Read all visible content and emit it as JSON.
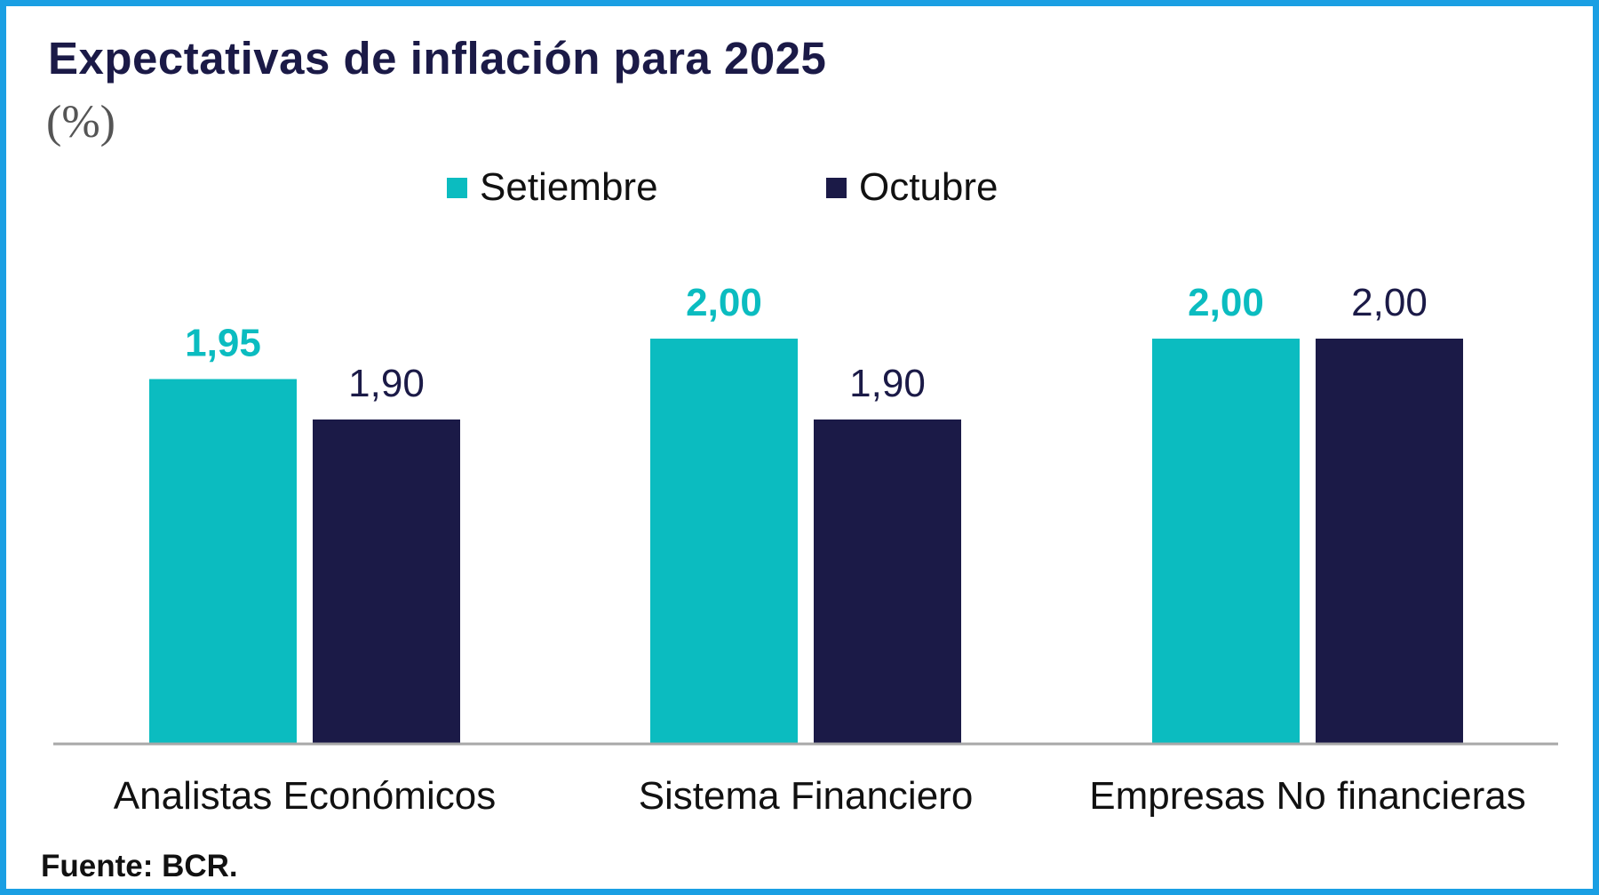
{
  "chart_data": {
    "type": "bar",
    "title": "Expectativas de inflación para 2025",
    "subtitle": "(%)",
    "categories": [
      "Analistas Económicos",
      "Sistema Financiero",
      "Empresas No financieras"
    ],
    "series": [
      {
        "name": "Setiembre",
        "color": "#0bbcc0",
        "values": [
          1.95,
          2.0,
          2.0
        ],
        "labels": [
          "1,95",
          "2,00",
          "2,00"
        ]
      },
      {
        "name": "Octubre",
        "color": "#1b1a47",
        "values": [
          1.9,
          1.9,
          2.0
        ],
        "labels": [
          "1,90",
          "1,90",
          "2,00"
        ]
      }
    ],
    "ylim": [
      1.5,
      2.0
    ],
    "grid": false,
    "legend": "top-center",
    "xlabel": "",
    "ylabel": ""
  },
  "source": "Fuente: BCR."
}
